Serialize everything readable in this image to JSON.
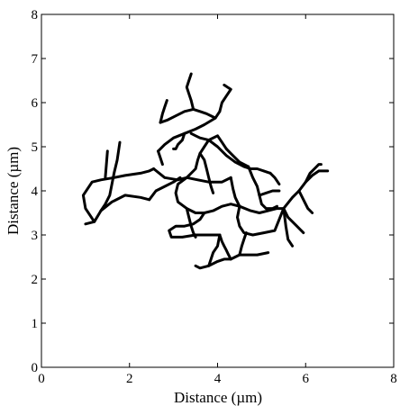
{
  "chart_data": {
    "type": "line",
    "title": "",
    "xlabel": "Distance (µm)",
    "ylabel": "Distance (µm)",
    "xlim": [
      0,
      8
    ],
    "ylim": [
      0,
      8
    ],
    "xticks": [
      "0",
      "2",
      "4",
      "6",
      "8"
    ],
    "yticks": [
      "0",
      "1",
      "2",
      "3",
      "4",
      "5",
      "6",
      "7",
      "8"
    ],
    "grid": false,
    "legend": "none",
    "color": "#000000",
    "series": [
      {
        "x": [
          1.0,
          1.2,
          1.35,
          1.45,
          1.55,
          1.65,
          1.72,
          1.78
        ],
        "y": [
          3.25,
          3.3,
          3.55,
          3.7,
          3.9,
          4.4,
          4.7,
          5.1
        ]
      },
      {
        "x": [
          1.35,
          1.6,
          1.9,
          2.25,
          2.45
        ],
        "y": [
          3.55,
          3.75,
          3.9,
          3.85,
          3.8
        ]
      },
      {
        "x": [
          1.2,
          1.0,
          0.95,
          1.15,
          1.35,
          1.65,
          1.9,
          2.25,
          2.45,
          2.55
        ],
        "y": [
          3.3,
          3.6,
          3.9,
          4.2,
          4.25,
          4.3,
          4.35,
          4.4,
          4.45,
          4.5
        ]
      },
      {
        "x": [
          1.45,
          1.5
        ],
        "y": [
          4.3,
          4.9
        ]
      },
      {
        "x": [
          2.45,
          2.6,
          2.8,
          3.0,
          3.15
        ],
        "y": [
          3.8,
          4.0,
          4.1,
          4.2,
          4.3
        ]
      },
      {
        "x": [
          2.55,
          2.8,
          3.1,
          3.3
        ],
        "y": [
          4.5,
          4.3,
          4.25,
          4.3
        ]
      },
      {
        "x": [
          3.3,
          3.5,
          3.55,
          3.6,
          3.7,
          3.8
        ],
        "y": [
          4.3,
          4.5,
          4.7,
          4.85,
          5.0,
          5.15
        ]
      },
      {
        "x": [
          3.3,
          3.1,
          3.05,
          3.1,
          3.3,
          3.5,
          3.7
        ],
        "y": [
          4.3,
          4.15,
          3.95,
          3.75,
          3.6,
          3.5,
          3.5
        ]
      },
      {
        "x": [
          3.7,
          3.9,
          4.1,
          4.3,
          4.5,
          4.75,
          4.95,
          5.15,
          5.35,
          5.5
        ],
        "y": [
          3.5,
          3.55,
          3.65,
          3.7,
          3.65,
          3.55,
          3.5,
          3.55,
          3.6,
          3.6
        ]
      },
      {
        "x": [
          5.5,
          5.7,
          5.85,
          6.0,
          6.15,
          6.3,
          6.5
        ],
        "y": [
          3.6,
          3.85,
          4.0,
          4.2,
          4.35,
          4.45,
          4.45
        ]
      },
      {
        "x": [
          6.0,
          6.1,
          6.2,
          6.3,
          6.35
        ],
        "y": [
          4.2,
          4.4,
          4.5,
          4.6,
          4.6
        ]
      },
      {
        "x": [
          5.85,
          5.95,
          6.05,
          6.15
        ],
        "y": [
          4.0,
          3.8,
          3.6,
          3.5
        ]
      },
      {
        "x": [
          5.5,
          5.6,
          5.8,
          5.95
        ],
        "y": [
          3.6,
          3.4,
          3.2,
          3.05
        ]
      },
      {
        "x": [
          5.5,
          5.55,
          5.6,
          5.7
        ],
        "y": [
          3.6,
          3.2,
          2.9,
          2.75
        ]
      },
      {
        "x": [
          4.5,
          4.45,
          4.5,
          4.6,
          4.8,
          5.05,
          5.3,
          5.5
        ],
        "y": [
          3.65,
          3.4,
          3.2,
          3.05,
          3.0,
          3.05,
          3.1,
          3.6
        ]
      },
      {
        "x": [
          3.7,
          3.6,
          3.45,
          3.25,
          3.05,
          2.9,
          2.95,
          3.2,
          3.5,
          3.8,
          4.05
        ],
        "y": [
          3.5,
          3.35,
          3.25,
          3.2,
          3.2,
          3.1,
          2.95,
          2.95,
          3.0,
          3.0,
          3.0
        ]
      },
      {
        "x": [
          3.3,
          3.35,
          3.4,
          3.45,
          3.5
        ],
        "y": [
          3.6,
          3.4,
          3.2,
          3.05,
          2.95
        ]
      },
      {
        "x": [
          4.05,
          4.1,
          4.15,
          4.2,
          4.25,
          4.3
        ],
        "y": [
          3.0,
          2.85,
          2.75,
          2.65,
          2.55,
          2.45
        ]
      },
      {
        "x": [
          3.5,
          3.6,
          3.8,
          4.0,
          4.15,
          4.3
        ],
        "y": [
          2.3,
          2.25,
          2.3,
          2.4,
          2.45,
          2.45
        ]
      },
      {
        "x": [
          3.8,
          3.85,
          3.9,
          4.0,
          4.05
        ],
        "y": [
          2.3,
          2.45,
          2.6,
          2.75,
          3.0
        ]
      },
      {
        "x": [
          4.3,
          4.5,
          4.7,
          4.9,
          5.15
        ],
        "y": [
          2.45,
          2.55,
          2.55,
          2.55,
          2.6
        ]
      },
      {
        "x": [
          4.5,
          4.55,
          4.6,
          4.65
        ],
        "y": [
          2.55,
          2.75,
          2.9,
          3.05
        ]
      },
      {
        "x": [
          3.8,
          4.0,
          4.2,
          4.4,
          4.6,
          4.75,
          4.9,
          5.05,
          5.2
        ],
        "y": [
          5.15,
          5.0,
          4.8,
          4.65,
          4.55,
          4.5,
          4.5,
          4.45,
          4.4
        ]
      },
      {
        "x": [
          3.8,
          4.0,
          4.1,
          4.2
        ],
        "y": [
          5.15,
          5.25,
          5.1,
          4.95
        ]
      },
      {
        "x": [
          4.2,
          4.3,
          4.4,
          4.5,
          4.6,
          4.7
        ],
        "y": [
          4.95,
          4.85,
          4.75,
          4.65,
          4.6,
          4.55
        ]
      },
      {
        "x": [
          3.6,
          3.7,
          3.75,
          3.8,
          3.85,
          3.9
        ],
        "y": [
          4.85,
          4.7,
          4.5,
          4.3,
          4.1,
          3.95
        ]
      },
      {
        "x": [
          3.3,
          3.55,
          3.8,
          4.1,
          4.3
        ],
        "y": [
          4.3,
          4.25,
          4.2,
          4.2,
          4.3
        ]
      },
      {
        "x": [
          4.3,
          4.35,
          4.4,
          4.5
        ],
        "y": [
          4.3,
          4.05,
          3.85,
          3.65
        ]
      },
      {
        "x": [
          4.7,
          4.8,
          4.9,
          4.95
        ],
        "y": [
          4.55,
          4.3,
          4.1,
          3.9
        ]
      },
      {
        "x": [
          4.95,
          5.0,
          5.1,
          5.25,
          5.35
        ],
        "y": [
          3.9,
          3.7,
          3.6,
          3.6,
          3.65
        ]
      },
      {
        "x": [
          4.95,
          5.1,
          5.25,
          5.4
        ],
        "y": [
          3.9,
          3.95,
          4.0,
          4.0
        ]
      },
      {
        "x": [
          5.2,
          5.3,
          5.4
        ],
        "y": [
          4.4,
          4.3,
          4.15
        ]
      },
      {
        "x": [
          3.8,
          3.6,
          3.5,
          3.4
        ],
        "y": [
          5.15,
          5.2,
          5.25,
          5.3
        ]
      },
      {
        "x": [
          2.65,
          2.8,
          3.0,
          3.25,
          3.5,
          3.7,
          3.95,
          4.05
        ],
        "y": [
          4.9,
          5.05,
          5.2,
          5.3,
          5.4,
          5.5,
          5.65,
          5.8
        ]
      },
      {
        "x": [
          4.05,
          4.1,
          4.2,
          4.3,
          4.15
        ],
        "y": [
          5.8,
          6.0,
          6.15,
          6.3,
          6.4
        ]
      },
      {
        "x": [
          3.95,
          3.75,
          3.6,
          3.45,
          3.25,
          3.05,
          2.85,
          2.7
        ],
        "y": [
          5.65,
          5.75,
          5.8,
          5.85,
          5.8,
          5.7,
          5.6,
          5.55
        ]
      },
      {
        "x": [
          2.7,
          2.75,
          2.8,
          2.85
        ],
        "y": [
          5.55,
          5.75,
          5.9,
          6.05
        ]
      },
      {
        "x": [
          3.45,
          3.4,
          3.35,
          3.3,
          3.35,
          3.4
        ],
        "y": [
          5.85,
          6.05,
          6.2,
          6.35,
          6.5,
          6.65
        ]
      },
      {
        "x": [
          3.25,
          3.2,
          3.1,
          3.05,
          3.0
        ],
        "y": [
          5.3,
          5.15,
          5.05,
          4.95,
          4.95
        ]
      },
      {
        "x": [
          2.65,
          2.7,
          2.75
        ],
        "y": [
          4.9,
          4.75,
          4.6
        ]
      }
    ]
  }
}
